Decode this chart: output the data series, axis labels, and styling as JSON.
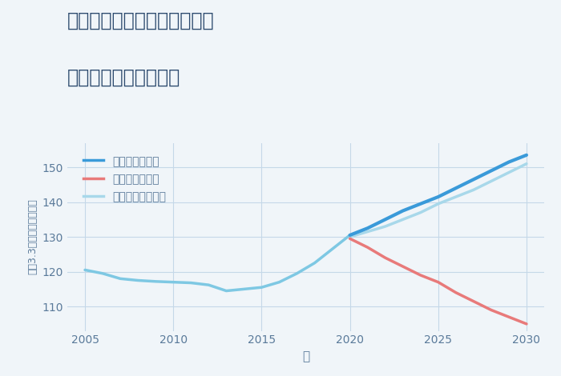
{
  "title_line1": "兵庫県西宮市甲子園口北町の",
  "title_line2": "中古戸建ての価格推移",
  "xlabel": "年",
  "ylabel": "坪（3.3㎡）単価（万円）",
  "background_color": "#f0f5f9",
  "plot_bg_color": "#f0f5f9",
  "grid_color": "#c5d8e8",
  "xlim": [
    2004,
    2031
  ],
  "ylim": [
    103,
    157
  ],
  "xticks": [
    2005,
    2010,
    2015,
    2020,
    2025,
    2030
  ],
  "yticks": [
    110,
    120,
    130,
    140,
    150
  ],
  "history_x": [
    2005,
    2006,
    2007,
    2008,
    2009,
    2010,
    2011,
    2012,
    2013,
    2014,
    2015,
    2016,
    2017,
    2018,
    2019,
    2020
  ],
  "history_y": [
    120.5,
    119.5,
    118.0,
    117.5,
    117.2,
    117.0,
    116.8,
    116.2,
    114.5,
    115.0,
    115.5,
    117.0,
    119.5,
    122.5,
    126.5,
    130.5
  ],
  "good_x": [
    2020,
    2021,
    2022,
    2023,
    2024,
    2025,
    2026,
    2027,
    2028,
    2029,
    2030
  ],
  "good_y": [
    130.5,
    132.5,
    135.0,
    137.5,
    139.5,
    141.5,
    144.0,
    146.5,
    149.0,
    151.5,
    153.5
  ],
  "normal_x": [
    2020,
    2021,
    2022,
    2023,
    2024,
    2025,
    2026,
    2027,
    2028,
    2029,
    2030
  ],
  "normal_y": [
    130.0,
    131.5,
    133.0,
    135.0,
    137.0,
    139.5,
    141.5,
    143.5,
    146.0,
    148.5,
    151.0
  ],
  "bad_x": [
    2020,
    2021,
    2022,
    2023,
    2024,
    2025,
    2026,
    2027,
    2028,
    2029,
    2030
  ],
  "bad_y": [
    129.5,
    127.0,
    124.0,
    121.5,
    119.0,
    117.0,
    114.0,
    111.5,
    109.0,
    107.0,
    105.0
  ],
  "history_color": "#7ec8e3",
  "good_color": "#3a9ad9",
  "normal_color": "#a8d8ea",
  "bad_color": "#e87a7a",
  "legend_labels": [
    "グッドシナリオ",
    "バッドシナリオ",
    "ノーマルシナリオ"
  ],
  "legend_colors": [
    "#3a9ad9",
    "#e87a7a",
    "#a8d8ea"
  ],
  "title_color": "#2c4a6e",
  "axis_label_color": "#5a7a9a",
  "tick_label_color": "#5a7a9a"
}
